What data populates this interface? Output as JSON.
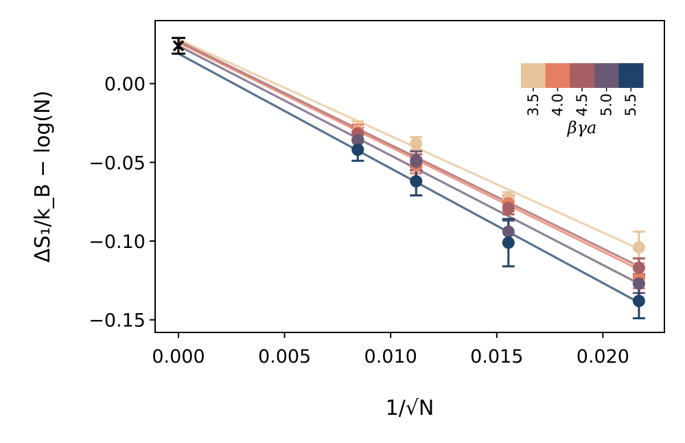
{
  "chart_data": {
    "type": "scatter",
    "title": "",
    "xlabel": "1/√N",
    "ylabel": "ΔS₁/k_B − log(N)",
    "xlim": [
      -0.0011,
      0.0229
    ],
    "ylim": [
      -0.158,
      0.04
    ],
    "x_ticks": [
      0.0,
      0.005,
      0.01,
      0.015,
      0.02
    ],
    "x_tick_labels": [
      "0.000",
      "0.005",
      "0.010",
      "0.015",
      "0.020"
    ],
    "y_ticks": [
      0.0,
      -0.05,
      -0.1,
      -0.15
    ],
    "y_tick_labels": [
      "0.00",
      "−0.05",
      "−0.10",
      "−0.15"
    ],
    "grid": false,
    "x": [
      0.00845,
      0.0112,
      0.01555,
      0.0217
    ],
    "series": [
      {
        "name": "3.5",
        "color": "#e8c49a",
        "values": [
          -0.03,
          -0.038,
          -0.073,
          -0.104
        ],
        "errors": [
          0.006,
          0.004,
          0.004,
          0.01
        ],
        "fit": [
          0.028,
          -0.105
        ]
      },
      {
        "name": "4.0",
        "color": "#e67e62",
        "values": [
          -0.031,
          -0.052,
          -0.076,
          -0.123
        ],
        "errors": [
          0.005,
          0.005,
          0.005,
          0.007
        ],
        "fit": [
          0.026,
          -0.118
        ]
      },
      {
        "name": "4.5",
        "color": "#a75f63",
        "values": [
          -0.032,
          -0.05,
          -0.079,
          -0.117
        ],
        "errors": [
          0.004,
          0.005,
          0.004,
          0.006
        ],
        "fit": [
          0.027,
          -0.116
        ]
      },
      {
        "name": "5.0",
        "color": "#6a5874",
        "values": [
          -0.036,
          -0.049,
          -0.094,
          -0.127
        ],
        "errors": [
          0.005,
          0.006,
          0.007,
          0.006
        ],
        "fit": [
          0.024,
          -0.127
        ]
      },
      {
        "name": "5.5",
        "color": "#1f4368",
        "values": [
          -0.042,
          -0.062,
          -0.101,
          -0.138
        ],
        "errors": [
          0.007,
          0.009,
          0.015,
          0.011
        ],
        "fit": [
          0.019,
          -0.139
        ]
      }
    ],
    "extrapolated_point": {
      "x": 0.0,
      "y": 0.024,
      "error": 0.005,
      "marker": "x",
      "color": "#000000"
    },
    "colorbar": {
      "title": "βγa",
      "tick_labels": [
        "3.5",
        "4.0",
        "4.5",
        "5.0",
        "5.5"
      ],
      "colors": [
        "#e8c49a",
        "#e67e62",
        "#a75f63",
        "#6a5874",
        "#1f4368"
      ],
      "placement": "top-right"
    }
  }
}
